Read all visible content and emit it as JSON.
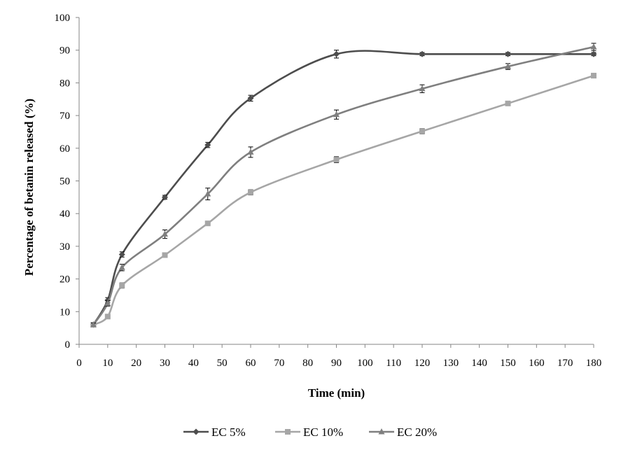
{
  "chart_data": {
    "type": "line",
    "xlabel": "Time (min)",
    "ylabel": "Percentage of betanin released (%)",
    "xlim": [
      0,
      180
    ],
    "ylim": [
      0,
      100
    ],
    "x_ticks": [
      0,
      10,
      20,
      30,
      40,
      50,
      60,
      70,
      80,
      90,
      100,
      110,
      120,
      130,
      140,
      150,
      160,
      170,
      180
    ],
    "y_ticks": [
      0,
      10,
      20,
      30,
      40,
      50,
      60,
      70,
      80,
      90,
      100
    ],
    "grid": false,
    "legend_position": "bottom",
    "series": [
      {
        "name": "EC 5%",
        "marker": "diamond",
        "color": "#4d4d4d",
        "x": [
          5,
          10,
          15,
          30,
          45,
          60,
          90,
          120,
          150,
          180
        ],
        "y": [
          6,
          13.5,
          27.5,
          45,
          61,
          75.3,
          88.8,
          88.8,
          88.8,
          88.8
        ],
        "err": [
          0.5,
          0.8,
          0.8,
          0.6,
          0.8,
          0.9,
          1.2,
          0.5,
          0.5,
          0.5
        ]
      },
      {
        "name": "EC 10%",
        "marker": "square",
        "color": "#a6a6a6",
        "x": [
          5,
          10,
          15,
          30,
          45,
          60,
          90,
          120,
          150,
          180
        ],
        "y": [
          6,
          8.5,
          18,
          27.3,
          37,
          46.5,
          56.5,
          65.2,
          73.7,
          82.2
        ],
        "err": [
          0.5,
          0.6,
          0.8,
          0.7,
          0.6,
          0.8,
          0.9,
          0.8,
          0.6,
          0.7
        ]
      },
      {
        "name": "EC 20%",
        "marker": "triangle",
        "color": "#7f7f7f",
        "x": [
          5,
          10,
          15,
          30,
          45,
          60,
          90,
          120,
          150,
          180
        ],
        "y": [
          6,
          12.5,
          23.5,
          33.7,
          46,
          58.8,
          70.3,
          78.2,
          85,
          91
        ],
        "err": [
          0.5,
          0.8,
          1.0,
          1.3,
          1.8,
          1.6,
          1.4,
          1.2,
          0.9,
          1.1
        ]
      }
    ]
  }
}
